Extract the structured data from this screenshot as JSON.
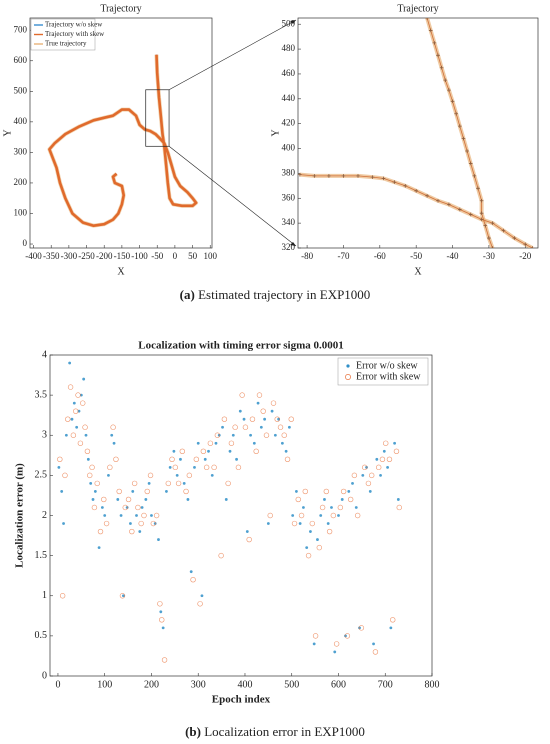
{
  "chart_data": [
    {
      "type": "line",
      "title": "Trajectory",
      "xlabel": "X",
      "ylabel": "Y",
      "xlim": [
        -410,
        105
      ],
      "xticks": [
        -400,
        -350,
        -300,
        -250,
        -200,
        -150,
        -100,
        -50,
        0,
        50,
        100
      ],
      "ylim": [
        -13,
        740
      ],
      "yticks": [
        0,
        100,
        200,
        300,
        400,
        500,
        600,
        700
      ],
      "x": [
        -165,
        -175,
        -170,
        -150,
        -145,
        -150,
        -160,
        -175,
        -200,
        -230,
        -260,
        -290,
        -310,
        -325,
        -335,
        -355,
        -340,
        -310,
        -270,
        -230,
        -195,
        -175,
        -150,
        -130,
        -110,
        -100,
        -85,
        -70,
        -55,
        -42,
        -30,
        -20,
        -10,
        0,
        15,
        35,
        50,
        60,
        50,
        20,
        -5,
        -15,
        -20,
        -25,
        -30,
        -35,
        -40,
        -45,
        -50,
        -52
      ],
      "y": [
        230,
        220,
        200,
        190,
        160,
        130,
        100,
        80,
        65,
        60,
        70,
        100,
        150,
        200,
        250,
        310,
        330,
        360,
        385,
        405,
        415,
        420,
        440,
        440,
        420,
        390,
        375,
        370,
        360,
        345,
        330,
        300,
        260,
        220,
        190,
        170,
        150,
        135,
        125,
        125,
        130,
        150,
        200,
        260,
        320,
        360,
        420,
        480,
        560,
        620
      ],
      "series": [
        {
          "name": "Trajectory w/o skew",
          "color": "#3a8fd0"
        },
        {
          "name": "Trajectory with skew",
          "color": "#e06a2c"
        },
        {
          "name": "True trajectory",
          "color": "#e8b47a"
        }
      ],
      "legend": "upper left",
      "caption_label": "(a)",
      "caption": "Estimated trajectory in EXP1000"
    },
    {
      "type": "line",
      "title": "Trajectory",
      "xlabel": "X",
      "ylabel": "Y",
      "xlim": [
        -82.5,
        -16.5
      ],
      "xticks": [
        -80,
        -70,
        -60,
        -50,
        -40,
        -30,
        -20
      ],
      "ylim": [
        320,
        505
      ],
      "yticks": [
        320,
        340,
        360,
        380,
        400,
        420,
        440,
        460,
        480,
        500
      ],
      "x": [
        -82,
        -78,
        -74,
        -70,
        -66,
        -62,
        -59,
        -56,
        -53,
        -50,
        -47,
        -44,
        -41,
        -38,
        -35,
        -32,
        -29,
        -26,
        -23,
        -20,
        -18,
        null,
        -47,
        -46,
        -45,
        -44,
        -43,
        -42,
        -41,
        -40,
        -39,
        -38,
        -37,
        -36,
        -35,
        -34,
        -33,
        -32,
        -32,
        -31,
        -30,
        -29
      ],
      "y": [
        379,
        378,
        378,
        378,
        378,
        377,
        376,
        373,
        370,
        366,
        362,
        358,
        355,
        351,
        347,
        343,
        340,
        334,
        328,
        323,
        320,
        null,
        505,
        495,
        485,
        475,
        465,
        455,
        447,
        438,
        428,
        418,
        408,
        398,
        388,
        378,
        368,
        358,
        348,
        338,
        328,
        320
      ],
      "line_color": "#e8b47a",
      "marker_color": "#8a5a3a"
    },
    {
      "type": "scatter",
      "title": "Localization with timing error sigma 0.0001",
      "xlabel": "Epoch index",
      "ylabel": "Localization error (m)",
      "xlim": [
        -17,
        800
      ],
      "xticks": [
        0,
        100,
        200,
        300,
        400,
        500,
        600,
        700,
        800
      ],
      "ylim": [
        0,
        4
      ],
      "yticks": [
        0,
        0.5,
        1,
        1.5,
        2,
        2.5,
        3,
        3.5,
        4
      ],
      "legend": "upper right",
      "caption_label": "(b)",
      "caption": "Localization error in EXP1000",
      "series": [
        {
          "name": "Error w/o skew",
          "color": "#2f8fc8",
          "x": [
            2,
            8,
            12,
            18,
            25,
            30,
            35,
            40,
            45,
            50,
            55,
            60,
            65,
            70,
            75,
            80,
            88,
            95,
            100,
            108,
            115,
            120,
            128,
            135,
            140,
            148,
            155,
            160,
            168,
            175,
            180,
            188,
            195,
            200,
            208,
            215,
            220,
            225,
            232,
            240,
            248,
            255,
            262,
            270,
            278,
            285,
            292,
            300,
            308,
            315,
            322,
            330,
            338,
            345,
            352,
            360,
            368,
            375,
            382,
            390,
            398,
            405,
            412,
            420,
            428,
            435,
            442,
            450,
            458,
            465,
            472,
            480,
            488,
            495,
            502,
            510,
            518,
            525,
            532,
            540,
            548,
            555,
            562,
            570,
            578,
            585,
            592,
            600,
            608,
            615,
            622,
            630,
            638,
            645,
            652,
            660,
            668,
            675,
            682,
            690,
            698,
            705,
            712,
            720,
            728
          ],
          "y": [
            2.6,
            2.3,
            1.9,
            3.0,
            3.9,
            3.2,
            3.4,
            3.1,
            3.3,
            3.5,
            3.7,
            3.0,
            2.7,
            2.4,
            2.2,
            2.3,
            1.6,
            2.1,
            2.0,
            2.5,
            3.0,
            2.9,
            2.2,
            2.0,
            1.0,
            2.1,
            1.9,
            2.3,
            2.0,
            1.8,
            2.1,
            2.2,
            2.4,
            2.0,
            1.9,
            1.7,
            0.8,
            0.6,
            2.3,
            2.6,
            2.8,
            2.5,
            2.7,
            2.4,
            2.2,
            1.3,
            2.6,
            2.9,
            1.0,
            2.7,
            2.8,
            2.5,
            2.9,
            3.0,
            3.1,
            2.2,
            2.8,
            3.0,
            2.7,
            3.3,
            3.2,
            1.8,
            3.0,
            2.9,
            3.4,
            3.1,
            3.2,
            1.9,
            3.3,
            3.0,
            3.2,
            2.9,
            2.8,
            3.1,
            2.0,
            2.3,
            1.9,
            2.1,
            1.6,
            1.8,
            0.4,
            1.7,
            2.0,
            2.2,
            1.9,
            2.1,
            0.3,
            2.0,
            2.2,
            0.5,
            2.3,
            2.4,
            2.1,
            0.6,
            2.5,
            2.6,
            2.3,
            0.4,
            2.7,
            2.5,
            2.8,
            2.6,
            0.6,
            2.9,
            2.2
          ]
        },
        {
          "name": "Error with skew",
          "color": "#e8703a",
          "x": [
            4,
            10,
            15,
            21,
            27,
            33,
            38,
            43,
            48,
            53,
            58,
            63,
            68,
            73,
            78,
            84,
            91,
            98,
            104,
            111,
            118,
            124,
            131,
            138,
            144,
            151,
            158,
            164,
            171,
            178,
            184,
            191,
            198,
            204,
            211,
            218,
            222,
            228,
            236,
            244,
            251,
            258,
            266,
            274,
            281,
            289,
            296,
            304,
            311,
            318,
            326,
            334,
            341,
            349,
            356,
            364,
            371,
            379,
            386,
            394,
            401,
            409,
            416,
            424,
            431,
            439,
            446,
            454,
            461,
            469,
            476,
            484,
            491,
            499,
            506,
            514,
            521,
            529,
            536,
            544,
            551,
            559,
            566,
            574,
            581,
            589,
            596,
            604,
            611,
            619,
            626,
            634,
            641,
            649,
            656,
            664,
            671,
            679,
            686,
            694,
            701,
            709,
            716,
            724,
            730
          ],
          "y": [
            2.7,
            1.0,
            2.5,
            3.2,
            3.6,
            3.0,
            3.3,
            3.5,
            2.9,
            3.4,
            3.1,
            2.8,
            2.5,
            2.6,
            2.1,
            2.4,
            1.8,
            2.2,
            1.9,
            2.6,
            3.1,
            2.7,
            2.3,
            1.0,
            2.1,
            2.2,
            1.8,
            2.4,
            2.1,
            1.9,
            2.0,
            2.3,
            2.5,
            1.9,
            2.0,
            0.9,
            0.7,
            0.2,
            2.4,
            2.7,
            2.6,
            2.4,
            2.8,
            2.3,
            2.5,
            1.2,
            2.7,
            0.9,
            2.8,
            2.6,
            2.9,
            2.6,
            3.0,
            1.5,
            3.2,
            2.4,
            2.9,
            3.1,
            2.6,
            3.5,
            3.1,
            1.7,
            3.2,
            2.8,
            3.5,
            3.3,
            3.0,
            2.0,
            3.4,
            3.2,
            3.1,
            3.0,
            2.7,
            3.2,
            1.9,
            2.2,
            2.0,
            2.3,
            1.5,
            1.9,
            0.5,
            1.6,
            2.1,
            2.3,
            1.8,
            2.0,
            0.4,
            2.1,
            2.3,
            0.5,
            2.2,
            2.5,
            2.0,
            0.6,
            2.6,
            2.4,
            2.5,
            0.3,
            2.6,
            2.7,
            2.9,
            2.7,
            0.7,
            2.8,
            2.1
          ]
        }
      ]
    }
  ]
}
